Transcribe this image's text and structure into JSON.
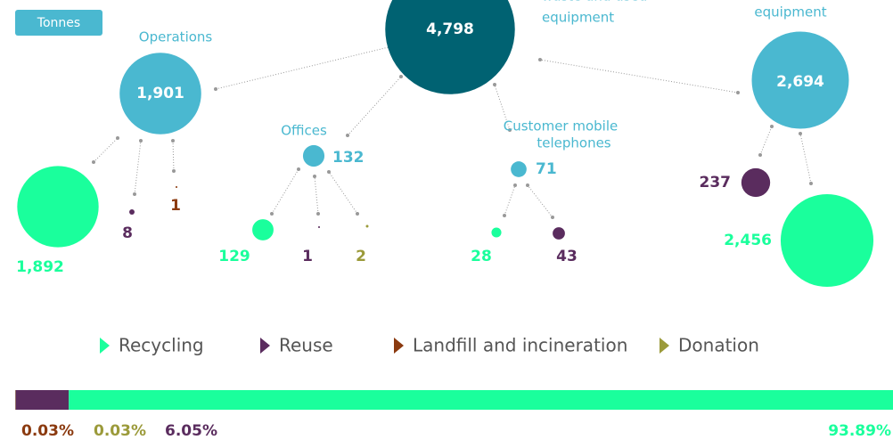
{
  "badge": "Tonnes",
  "nodes": [
    {
      "label": "4,798",
      "value": 4798,
      "color": "#006272",
      "name": [
        "waste and used",
        "equipment"
      ]
    },
    {
      "label": "1,901",
      "value": 1901,
      "color": "#4ab8d0",
      "name": [
        "Operations"
      ]
    },
    {
      "label": "1,892",
      "value": 1892,
      "color": "#1aff9c"
    },
    {
      "label": "8",
      "value": 8,
      "color": "#5a2c5e"
    },
    {
      "label": "1",
      "value": 1,
      "color": "#8b3a0f"
    },
    {
      "label": "132",
      "value": 132,
      "color": "#4ab8d0",
      "name": [
        "Offices"
      ]
    },
    {
      "label": "129",
      "value": 129,
      "color": "#1aff9c"
    },
    {
      "label": "1",
      "value": 1,
      "color": "#5a2c5e"
    },
    {
      "label": "2",
      "value": 2,
      "color": "#9b9a3a"
    },
    {
      "label": "71",
      "value": 71,
      "color": "#4ab8d0",
      "name": [
        "Customer mobile",
        "telephones"
      ]
    },
    {
      "label": "28",
      "value": 28,
      "color": "#1aff9c"
    },
    {
      "label": "43",
      "value": 43,
      "color": "#5a2c5e"
    },
    {
      "label": "2,694",
      "value": 2694,
      "color": "#4ab8d0",
      "name": [
        "equipment"
      ]
    },
    {
      "label": "237",
      "value": 237,
      "color": "#5a2c5e"
    },
    {
      "label": "2,456",
      "value": 2456,
      "color": "#1aff9c"
    }
  ],
  "legend": [
    {
      "name": "Recycling",
      "color": "#1aff9c"
    },
    {
      "name": "Reuse",
      "color": "#5a2c5e"
    },
    {
      "name": "Landfill and incineration",
      "color": "#8b3a0f"
    },
    {
      "name": "Donation",
      "color": "#9b9a3a"
    }
  ],
  "bar": [
    {
      "value": 0.03,
      "label": "0.03%",
      "color": "#8b3a0f"
    },
    {
      "value": 0.03,
      "label": "0.03%",
      "color": "#9b9a3a"
    },
    {
      "value": 6.05,
      "label": "6.05%",
      "color": "#5a2c5e"
    },
    {
      "value": 93.89,
      "label": "93.89%",
      "color": "#1aff9c"
    }
  ]
}
